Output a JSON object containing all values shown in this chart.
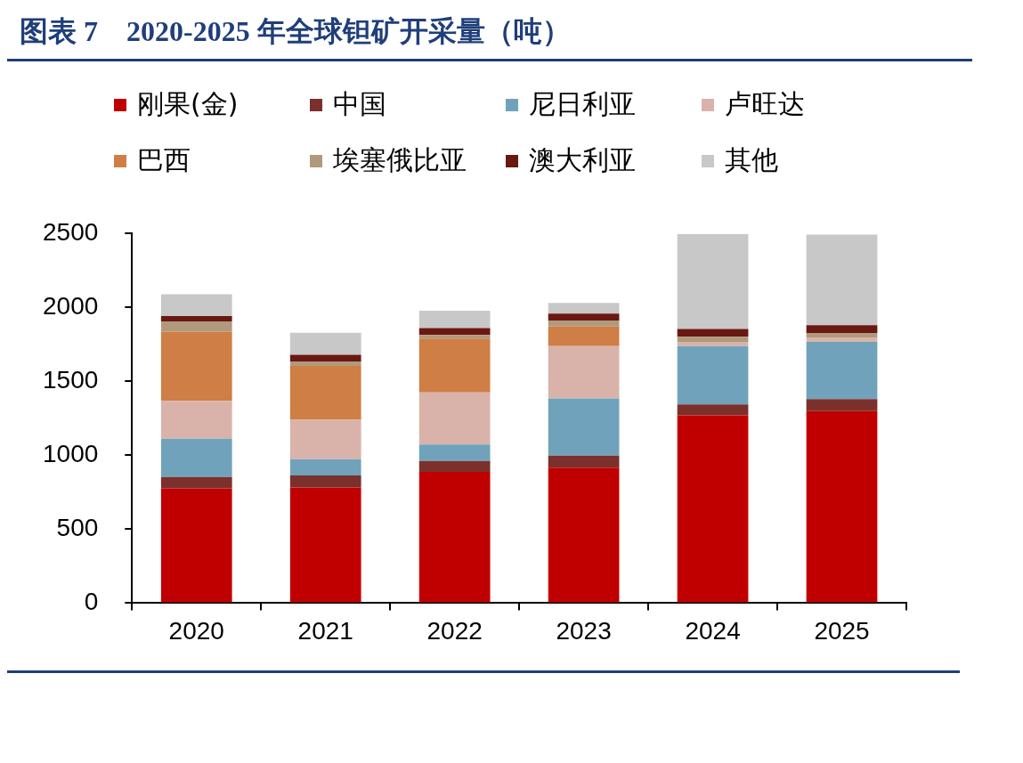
{
  "chart_data": {
    "type": "bar",
    "title": "图表 7　2020-2025 年全球钽矿开采量（吨）",
    "categories": [
      "2020",
      "2021",
      "2022",
      "2023",
      "2024",
      "2025"
    ],
    "stacked": true,
    "ylim": [
      0,
      2500
    ],
    "yticks": [
      0,
      500,
      1000,
      1500,
      2000,
      2500
    ],
    "grid": false,
    "legend": "top",
    "series": [
      {
        "name": "刚果(金)",
        "color": "#c00000",
        "values": [
          776,
          782,
          886,
          915,
          1268,
          1297
        ]
      },
      {
        "name": "中国",
        "color": "#7b302c",
        "values": [
          76,
          81,
          75,
          81,
          75,
          81
        ]
      },
      {
        "name": "尼日利亚",
        "color": "#70a3bb",
        "values": [
          259,
          110,
          110,
          387,
          393,
          387
        ]
      },
      {
        "name": "卢旺达",
        "color": "#d9b3a9",
        "values": [
          255,
          266,
          353,
          353,
          29,
          30
        ]
      },
      {
        "name": "巴西",
        "color": "#cf7e45",
        "values": [
          468,
          364,
          364,
          133,
          0,
          0
        ]
      },
      {
        "name": "埃塞俄比亚",
        "color": "#b09a7d",
        "values": [
          70,
          30,
          24,
          41,
          34,
          30
        ]
      },
      {
        "name": "澳大利亚",
        "color": "#6a1812",
        "values": [
          35,
          45,
          46,
          46,
          53,
          52
        ]
      },
      {
        "name": "其他",
        "color": "#c8c8c8",
        "values": [
          147,
          148,
          118,
          72,
          641,
          613
        ]
      }
    ]
  }
}
